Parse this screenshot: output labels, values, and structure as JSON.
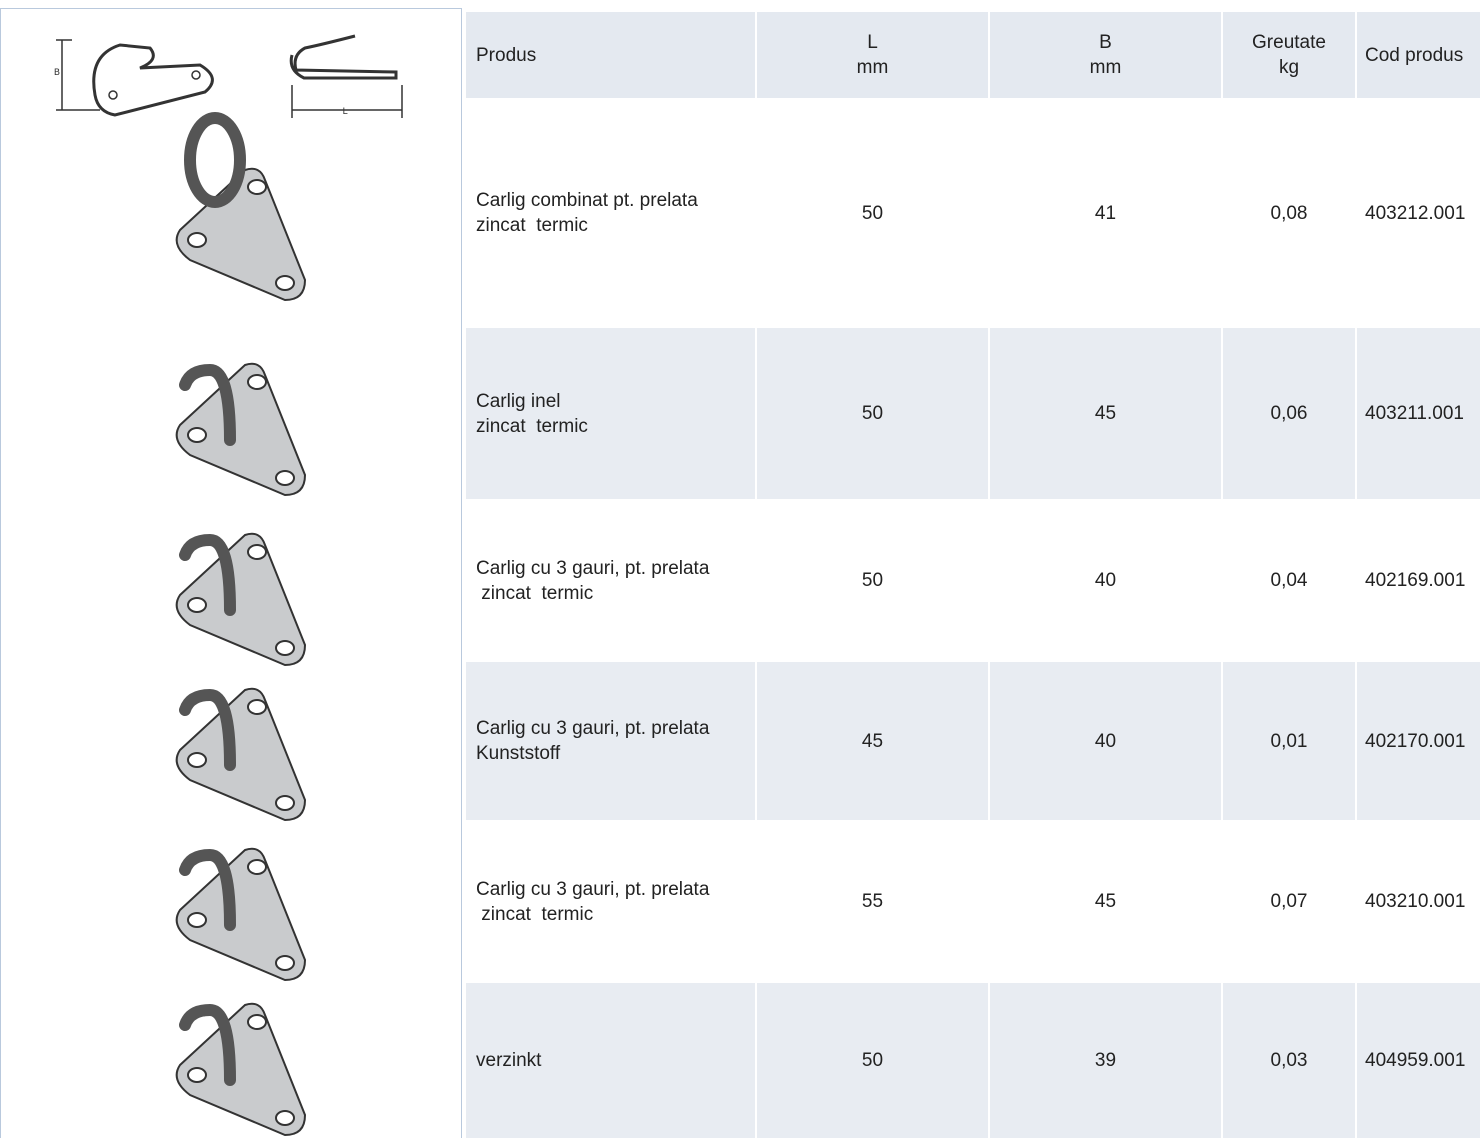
{
  "diagram": {
    "b_label": "B",
    "l_label": "L"
  },
  "table": {
    "header": [
      "Produs",
      [
        "L",
        "mm"
      ],
      [
        "B",
        "mm"
      ],
      [
        "Greutate",
        "kg"
      ],
      "Cod produs"
    ],
    "rows": [
      [
        [
          "Carlig combinat pt. prelata",
          "zincat  termic"
        ],
        50,
        41,
        "0,08",
        "403212.001"
      ],
      [
        [
          "Carlig inel",
          "zincat  termic"
        ],
        50,
        45,
        "0,06",
        "403211.001"
      ],
      [
        [
          "Carlig cu 3 gauri, pt. prelata",
          " zincat  termic"
        ],
        50,
        40,
        "0,04",
        "402169.001"
      ],
      [
        [
          "Carlig cu 3 gauri, pt. prelata",
          "Kunststoff"
        ],
        45,
        40,
        "0,01",
        "402170.001"
      ],
      [
        [
          "Carlig cu 3 gauri, pt. prelata",
          " zincat  termic"
        ],
        55,
        45,
        "0,07",
        "403210.001"
      ],
      [
        [
          "verzinkt"
        ],
        50,
        39,
        "0,03",
        "404959.001"
      ]
    ]
  }
}
